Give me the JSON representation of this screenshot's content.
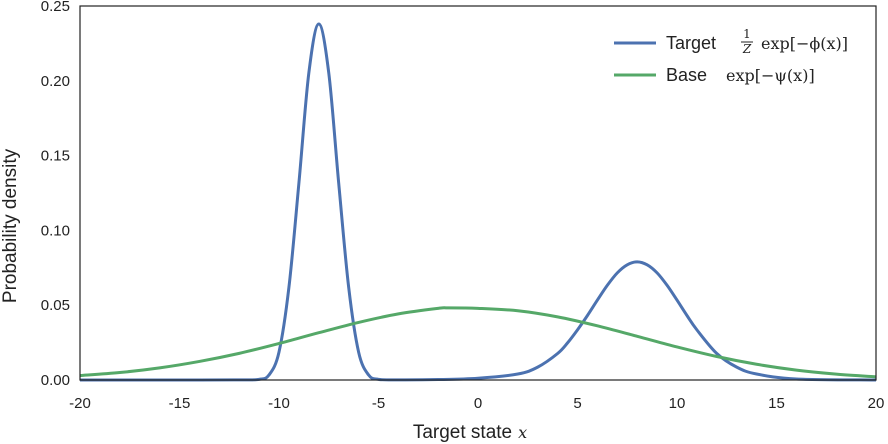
{
  "chart_data": {
    "type": "line",
    "xlabel": "Target state",
    "xlabel_var": "x",
    "ylabel": "Probability density",
    "xlim": [
      -20,
      20
    ],
    "ylim": [
      0,
      0.25
    ],
    "xticks": [
      -20,
      -15,
      -10,
      -5,
      0,
      5,
      10,
      15,
      20
    ],
    "xtick_labels": [
      "-20",
      "-15",
      "-10",
      "-5",
      "0",
      "5",
      "10",
      "15",
      "20"
    ],
    "yticks": [
      0,
      0.05,
      0.1,
      0.15,
      0.2,
      0.25
    ],
    "ytick_labels": [
      "0.00",
      "0.05",
      "0.10",
      "0.15",
      "0.20",
      "0.25"
    ],
    "legend_position": "top-right",
    "grid": false,
    "series": [
      {
        "name": "Target",
        "formula": {
          "frac_num": "1",
          "frac_den": "Z",
          "expr": "exp[−ϕ(x)]"
        },
        "color": "#4C72B0",
        "x": [
          -20,
          -14,
          -12,
          -11,
          -10.5,
          -10,
          -9.5,
          -9,
          -8.5,
          -8,
          -7.5,
          -7,
          -6.5,
          -6,
          -5.5,
          -5,
          -4,
          -2,
          0,
          2,
          3,
          4,
          4.5,
          5,
          5.5,
          6,
          6.5,
          7,
          7.5,
          8,
          8.5,
          9,
          9.5,
          10,
          10.5,
          11,
          12,
          13,
          14,
          16,
          20
        ],
        "y": [
          0,
          0,
          0.0001,
          0.0004,
          0.0034,
          0.0187,
          0.0621,
          0.1316,
          0.2053,
          0.238,
          0.2053,
          0.1316,
          0.0621,
          0.0187,
          0.0034,
          0.0004,
          0.0001,
          0.0003,
          0.0012,
          0.004,
          0.0086,
          0.0177,
          0.0248,
          0.0335,
          0.0431,
          0.0534,
          0.0633,
          0.0716,
          0.077,
          0.079,
          0.077,
          0.0716,
          0.0633,
          0.0534,
          0.0431,
          0.0335,
          0.0177,
          0.0086,
          0.004,
          0.0007,
          0
        ]
      },
      {
        "name": "Base",
        "formula": {
          "expr": "exp[−ψ(x)]"
        },
        "color": "#55A868",
        "x": [
          -20,
          -18,
          -16,
          -14,
          -12,
          -10,
          -8,
          -6,
          -4,
          -2,
          -1.5,
          0,
          2,
          4,
          6,
          8,
          10,
          12,
          14,
          16,
          18,
          20
        ],
        "y": [
          0.003,
          0.005,
          0.0081,
          0.0124,
          0.0178,
          0.0244,
          0.0316,
          0.0385,
          0.0442,
          0.0479,
          0.0482,
          0.0479,
          0.0463,
          0.0422,
          0.0362,
          0.0292,
          0.0221,
          0.0157,
          0.0105,
          0.0066,
          0.0039,
          0.0021
        ]
      }
    ]
  }
}
